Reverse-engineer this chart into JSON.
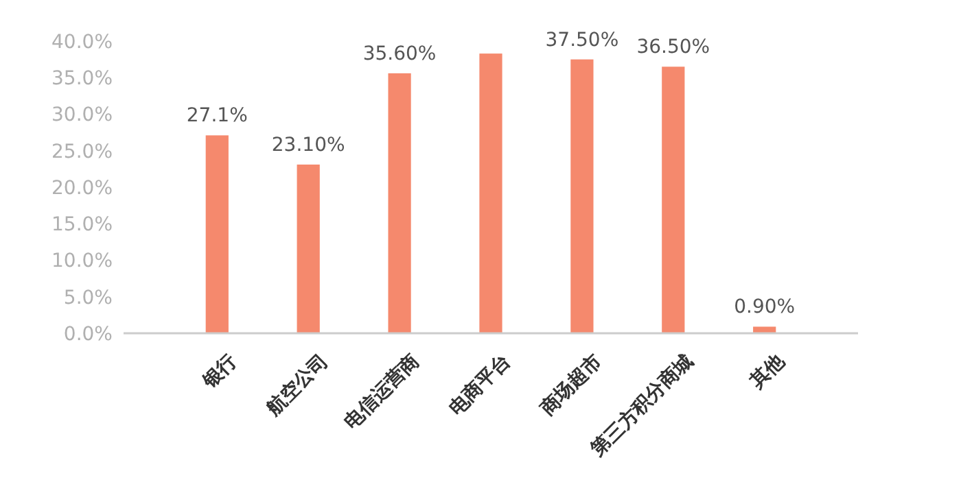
{
  "chart_data": {
    "type": "bar",
    "categories": [
      "银行",
      "航空公司",
      "电信运营商",
      "电商平台",
      "商场超市",
      "第三方积分商城",
      "其他"
    ],
    "values": [
      27.1,
      23.1,
      35.6,
      38.3,
      37.5,
      36.5,
      0.9
    ],
    "value_labels": [
      "27.1%",
      "23.10%",
      "35.60%",
      null,
      "37.50%",
      "36.50%",
      "0.90%"
    ],
    "color": "#f5896d",
    "ylim": [
      0,
      40
    ],
    "yticks": [
      {
        "value": 0,
        "label": "0.0%"
      },
      {
        "value": 5,
        "label": "5.0%"
      },
      {
        "value": 10,
        "label": "10.0%"
      },
      {
        "value": 15,
        "label": "15.0%"
      },
      {
        "value": 20,
        "label": "20.0%"
      },
      {
        "value": 25,
        "label": "25.0%"
      },
      {
        "value": 30,
        "label": "30.0%"
      },
      {
        "value": 35,
        "label": "35.0%"
      },
      {
        "value": 40,
        "label": "40.0%"
      }
    ],
    "grid": false
  }
}
